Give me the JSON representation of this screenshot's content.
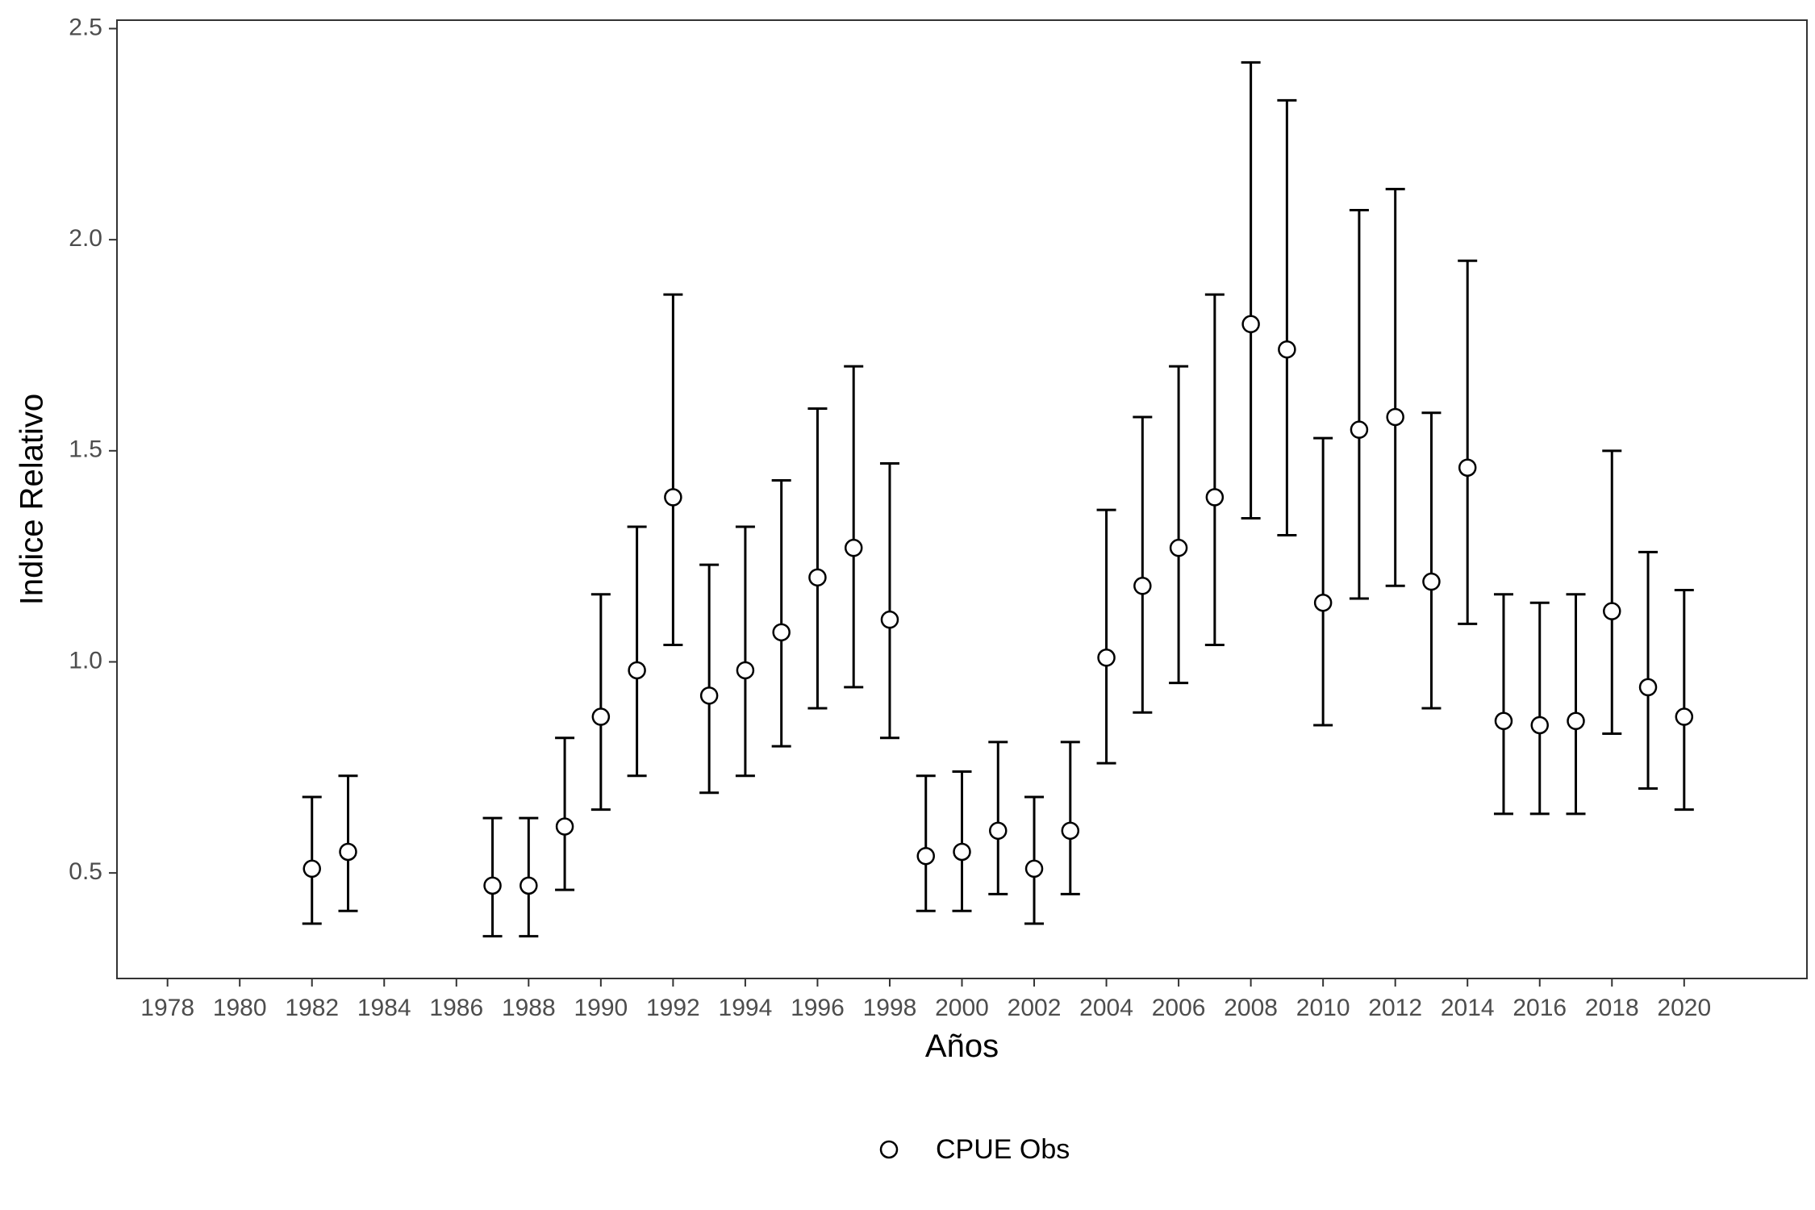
{
  "chart_data": {
    "type": "scatter",
    "title": "",
    "xlabel": "Años",
    "ylabel": "Indice Relativo",
    "xlim": [
      1976.6,
      2023.4
    ],
    "ylim": [
      0.25,
      2.52
    ],
    "x_ticks": [
      1978,
      1980,
      1982,
      1984,
      1986,
      1988,
      1990,
      1992,
      1994,
      1996,
      1998,
      2000,
      2002,
      2004,
      2006,
      2008,
      2010,
      2012,
      2014,
      2016,
      2018,
      2020
    ],
    "x_tick_labels": [
      "1978",
      "1980",
      "1982",
      "1984",
      "1986",
      "1988",
      "1990",
      "1992",
      "1994",
      "1996",
      "1998",
      "2000",
      "2002",
      "2004",
      "2006",
      "2008",
      "2010",
      "2012",
      "2014",
      "2016",
      "2018",
      "2020"
    ],
    "y_ticks": [
      0.5,
      1.0,
      1.5,
      2.0,
      2.5
    ],
    "y_tick_labels": [
      "0.5",
      "1.0",
      "1.5",
      "2.0",
      "2.5"
    ],
    "grid": false,
    "legend_position": "bottom",
    "series": [
      {
        "name": "CPUE Obs",
        "marker": "open-circle",
        "color": "#000000",
        "points": [
          {
            "x": 1982,
            "y": 0.51,
            "low": 0.38,
            "high": 0.68
          },
          {
            "x": 1983,
            "y": 0.55,
            "low": 0.41,
            "high": 0.73
          },
          {
            "x": 1987,
            "y": 0.47,
            "low": 0.35,
            "high": 0.63
          },
          {
            "x": 1988,
            "y": 0.47,
            "low": 0.35,
            "high": 0.63
          },
          {
            "x": 1989,
            "y": 0.61,
            "low": 0.46,
            "high": 0.82
          },
          {
            "x": 1990,
            "y": 0.87,
            "low": 0.65,
            "high": 1.16
          },
          {
            "x": 1991,
            "y": 0.98,
            "low": 0.73,
            "high": 1.32
          },
          {
            "x": 1992,
            "y": 1.39,
            "low": 1.04,
            "high": 1.87
          },
          {
            "x": 1993,
            "y": 0.92,
            "low": 0.69,
            "high": 1.23
          },
          {
            "x": 1994,
            "y": 0.98,
            "low": 0.73,
            "high": 1.32
          },
          {
            "x": 1995,
            "y": 1.07,
            "low": 0.8,
            "high": 1.43
          },
          {
            "x": 1996,
            "y": 1.2,
            "low": 0.89,
            "high": 1.6
          },
          {
            "x": 1997,
            "y": 1.27,
            "low": 0.94,
            "high": 1.7
          },
          {
            "x": 1998,
            "y": 1.1,
            "low": 0.82,
            "high": 1.47
          },
          {
            "x": 1999,
            "y": 0.54,
            "low": 0.41,
            "high": 0.73
          },
          {
            "x": 2000,
            "y": 0.55,
            "low": 0.41,
            "high": 0.74
          },
          {
            "x": 2001,
            "y": 0.6,
            "low": 0.45,
            "high": 0.81
          },
          {
            "x": 2002,
            "y": 0.51,
            "low": 0.38,
            "high": 0.68
          },
          {
            "x": 2003,
            "y": 0.6,
            "low": 0.45,
            "high": 0.81
          },
          {
            "x": 2004,
            "y": 1.01,
            "low": 0.76,
            "high": 1.36
          },
          {
            "x": 2005,
            "y": 1.18,
            "low": 0.88,
            "high": 1.58
          },
          {
            "x": 2006,
            "y": 1.27,
            "low": 0.95,
            "high": 1.7
          },
          {
            "x": 2007,
            "y": 1.39,
            "low": 1.04,
            "high": 1.87
          },
          {
            "x": 2008,
            "y": 1.8,
            "low": 1.34,
            "high": 2.42
          },
          {
            "x": 2009,
            "y": 1.74,
            "low": 1.3,
            "high": 2.33
          },
          {
            "x": 2010,
            "y": 1.14,
            "low": 0.85,
            "high": 1.53
          },
          {
            "x": 2011,
            "y": 1.55,
            "low": 1.15,
            "high": 2.07
          },
          {
            "x": 2012,
            "y": 1.58,
            "low": 1.18,
            "high": 2.12
          },
          {
            "x": 2013,
            "y": 1.19,
            "low": 0.89,
            "high": 1.59
          },
          {
            "x": 2014,
            "y": 1.46,
            "low": 1.09,
            "high": 1.95
          },
          {
            "x": 2015,
            "y": 0.86,
            "low": 0.64,
            "high": 1.16
          },
          {
            "x": 2016,
            "y": 0.85,
            "low": 0.64,
            "high": 1.14
          },
          {
            "x": 2017,
            "y": 0.86,
            "low": 0.64,
            "high": 1.16
          },
          {
            "x": 2018,
            "y": 1.12,
            "low": 0.83,
            "high": 1.5
          },
          {
            "x": 2019,
            "y": 0.94,
            "low": 0.7,
            "high": 1.26
          },
          {
            "x": 2020,
            "y": 0.87,
            "low": 0.65,
            "high": 1.17
          }
        ]
      }
    ]
  }
}
